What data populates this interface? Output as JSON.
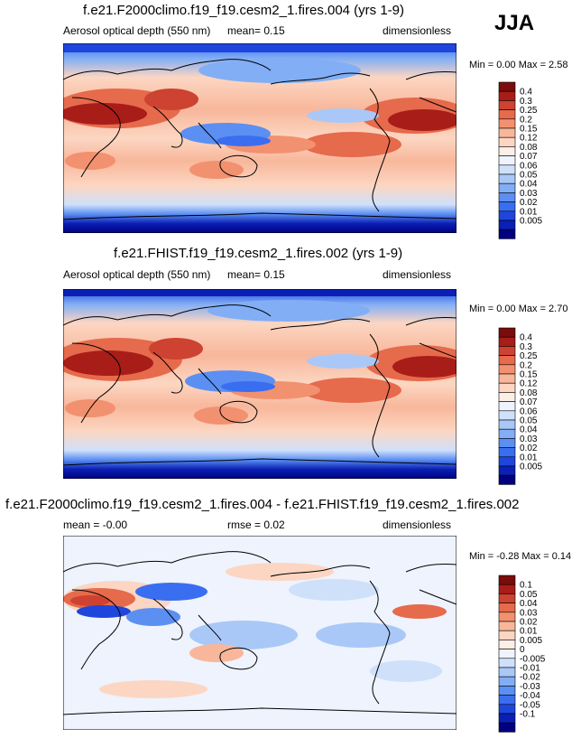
{
  "season": "JJA",
  "colors": {
    "seq": [
      "#000080",
      "#0a1fb4",
      "#1e46dc",
      "#3a6ef0",
      "#5c8ff2",
      "#82aef5",
      "#a9c8f8",
      "#cfe0fb",
      "#eef3fd",
      "#fdeee6",
      "#fcd6c2",
      "#f8b79b",
      "#f2916f",
      "#e66a4c",
      "#cd4230",
      "#a81d18",
      "#7a0c0c"
    ],
    "div": [
      "#000080",
      "#0a1fb4",
      "#1e46dc",
      "#3a6ef0",
      "#5c8ff2",
      "#82aef5",
      "#a9c8f8",
      "#cfe0fb",
      "#eef3fd",
      "#fdeee6",
      "#fcd6c2",
      "#f8b79b",
      "#f2916f",
      "#e66a4c",
      "#cd4230",
      "#a81d18",
      "#7a0c0c"
    ]
  },
  "panels": [
    {
      "title": "f.e21.F2000climo.f19_f19.cesm2_1.fires.004 (yrs 1-9)",
      "left": "Aerosol optical depth (550 nm)",
      "middle": "mean=   0.15",
      "right": "dimensionless",
      "minmax": "Min =   0.00 Max =   2.58"
    },
    {
      "title": "f.e21.FHIST.f19_f19.cesm2_1.fires.002 (yrs 1-9)",
      "left": "Aerosol optical depth (550 nm)",
      "middle": "mean=   0.15",
      "right": "dimensionless",
      "minmax": "Min =   0.00 Max =   2.70"
    },
    {
      "title": "f.e21.F2000climo.f19_f19.cesm2_1.fires.004 - f.e21.FHIST.f19_f19.cesm2_1.fires.002",
      "left": "mean =  -0.00",
      "middle": "rmse =   0.02",
      "right": "dimensionless",
      "minmax": "Min =  -0.28 Max =   0.14"
    }
  ],
  "chart_data": [
    {
      "type": "heatmap",
      "title": "f.e21.F2000climo.f19_f19.cesm2_1.fires.004 (yrs 1-9)",
      "variable": "Aerosol optical depth (550 nm)",
      "units": "dimensionless",
      "mean": 0.15,
      "min": 0.0,
      "max": 2.58,
      "colorbar_levels": [
        0.005,
        0.01,
        0.02,
        0.03,
        0.04,
        0.05,
        0.06,
        0.07,
        0.08,
        0.12,
        0.15,
        0.2,
        0.25,
        0.3,
        0.4
      ],
      "colorbar_labels": [
        "0.4",
        "0.3",
        "0.25",
        "0.2",
        "0.15",
        "0.12",
        "0.08",
        "0.07",
        "0.06",
        "0.05",
        "0.04",
        "0.03",
        "0.02",
        "0.01",
        "0.005"
      ]
    },
    {
      "type": "heatmap",
      "title": "f.e21.FHIST.f19_f19.cesm2_1.fires.002 (yrs 1-9)",
      "variable": "Aerosol optical depth (550 nm)",
      "units": "dimensionless",
      "mean": 0.15,
      "min": 0.0,
      "max": 2.7,
      "colorbar_levels": [
        0.005,
        0.01,
        0.02,
        0.03,
        0.04,
        0.05,
        0.06,
        0.07,
        0.08,
        0.12,
        0.15,
        0.2,
        0.25,
        0.3,
        0.4
      ],
      "colorbar_labels": [
        "0.4",
        "0.3",
        "0.25",
        "0.2",
        "0.15",
        "0.12",
        "0.08",
        "0.07",
        "0.06",
        "0.05",
        "0.04",
        "0.03",
        "0.02",
        "0.01",
        "0.005"
      ]
    },
    {
      "type": "heatmap",
      "title": "f.e21.F2000climo.f19_f19.cesm2_1.fires.004 - f.e21.FHIST.f19_f19.cesm2_1.fires.002",
      "units": "dimensionless",
      "mean": -0.0,
      "rmse": 0.02,
      "min": -0.28,
      "max": 0.14,
      "colorbar_levels": [
        -0.1,
        -0.05,
        -0.04,
        -0.03,
        -0.02,
        -0.01,
        -0.005,
        0,
        0.005,
        0.01,
        0.02,
        0.03,
        0.04,
        0.05,
        0.1
      ],
      "colorbar_labels": [
        "0.1",
        "0.05",
        "0.04",
        "0.03",
        "0.02",
        "0.01",
        "0.005",
        "0",
        "-0.005",
        "-0.01",
        "-0.02",
        "-0.03",
        "-0.04",
        "-0.05",
        "-0.1"
      ]
    }
  ]
}
